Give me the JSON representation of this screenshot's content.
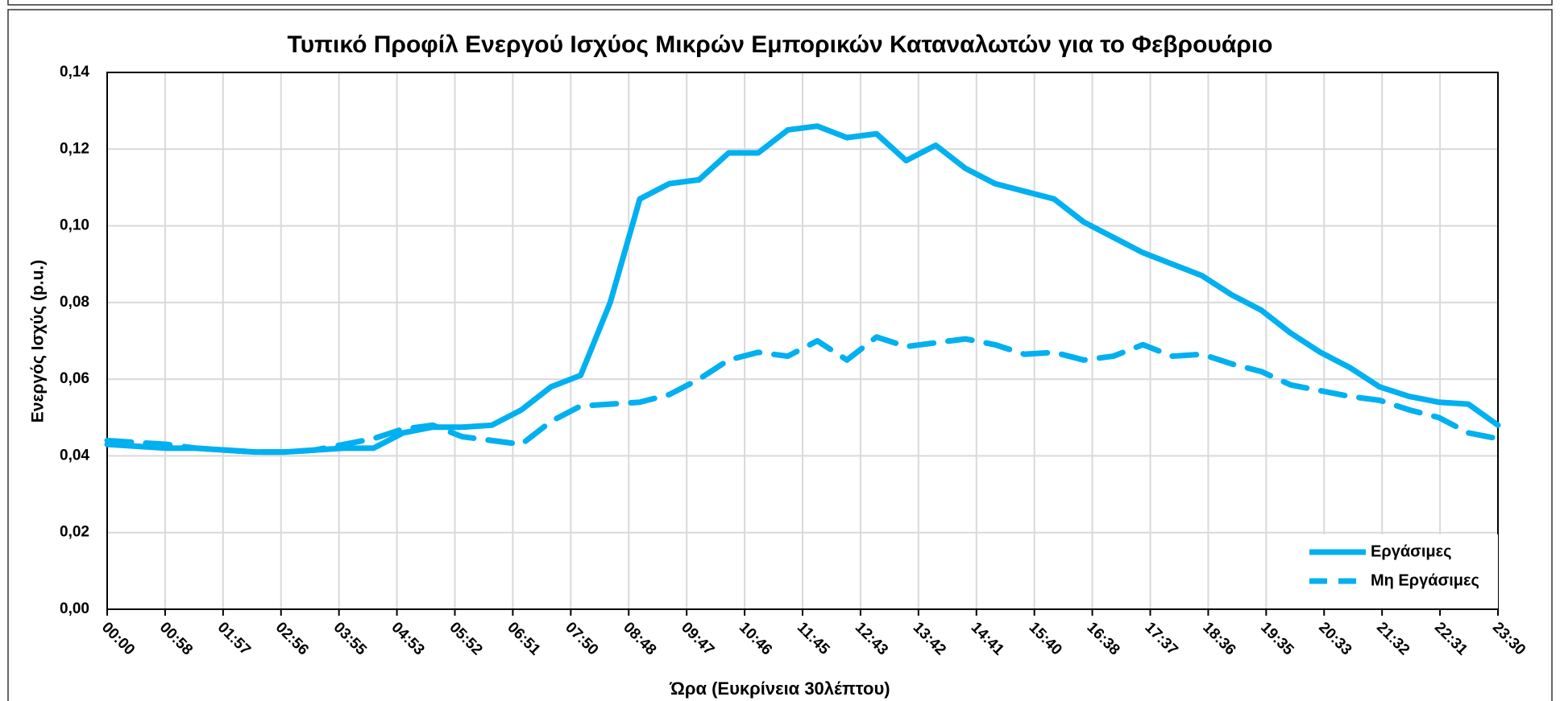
{
  "chart_data": {
    "type": "line",
    "title": "Τυπικό Προφίλ Ενεργού Ισχύος Μικρών Εμπορικών Καταναλωτών για το Φεβρουάριο",
    "x_label": "Ώρα (Ευκρίνεια 30λέπτου)",
    "y_label": "Ενεργός Ισχύς (p.u.)",
    "x": [
      0,
      30,
      60,
      90,
      120,
      150,
      180,
      210,
      240,
      270,
      300,
      330,
      360,
      390,
      420,
      450,
      480,
      510,
      540,
      570,
      600,
      630,
      660,
      690,
      720,
      750,
      780,
      810,
      840,
      870,
      900,
      930,
      960,
      990,
      1020,
      1050,
      1080,
      1110,
      1140,
      1170,
      1200,
      1230,
      1260,
      1290,
      1320,
      1350,
      1380,
      1410
    ],
    "xlim": [
      0,
      1410
    ],
    "xticks": [
      {
        "value": 0,
        "label": "00:00"
      },
      {
        "value": 58.75,
        "label": "00:58"
      },
      {
        "value": 117.5,
        "label": "01:57"
      },
      {
        "value": 176.25,
        "label": "02:56"
      },
      {
        "value": 235,
        "label": "03:55"
      },
      {
        "value": 293.75,
        "label": "04:53"
      },
      {
        "value": 352.5,
        "label": "05:52"
      },
      {
        "value": 411.25,
        "label": "06:51"
      },
      {
        "value": 470,
        "label": "07:50"
      },
      {
        "value": 528.75,
        "label": "08:48"
      },
      {
        "value": 587.5,
        "label": "09:47"
      },
      {
        "value": 646.25,
        "label": "10:46"
      },
      {
        "value": 705,
        "label": "11:45"
      },
      {
        "value": 763.75,
        "label": "12:43"
      },
      {
        "value": 822.5,
        "label": "13:42"
      },
      {
        "value": 881.25,
        "label": "14:41"
      },
      {
        "value": 940,
        "label": "15:40"
      },
      {
        "value": 998.75,
        "label": "16:38"
      },
      {
        "value": 1057.5,
        "label": "17:37"
      },
      {
        "value": 1116.25,
        "label": "18:36"
      },
      {
        "value": 1175,
        "label": "19:35"
      },
      {
        "value": 1233.75,
        "label": "20:33"
      },
      {
        "value": 1292.5,
        "label": "21:32"
      },
      {
        "value": 1351.25,
        "label": "22:31"
      },
      {
        "value": 1410,
        "label": "23:30"
      }
    ],
    "ylim": [
      0,
      0.14
    ],
    "yticks": [
      {
        "value": 0,
        "label": "0,00"
      },
      {
        "value": 0.02,
        "label": "0,02"
      },
      {
        "value": 0.04,
        "label": "0,04"
      },
      {
        "value": 0.06,
        "label": "0,06"
      },
      {
        "value": 0.08,
        "label": "0,08"
      },
      {
        "value": 0.1,
        "label": "0,10"
      },
      {
        "value": 0.12,
        "label": "0,12"
      },
      {
        "value": 0.14,
        "label": "0,14"
      }
    ],
    "grid": true,
    "legend": "lower right",
    "series": [
      {
        "name": "Εργάσιμες",
        "color": "#00b0f0",
        "dash": "solid",
        "values": [
          0.043,
          0.0425,
          0.042,
          0.042,
          0.0415,
          0.041,
          0.041,
          0.0415,
          0.042,
          0.042,
          0.046,
          0.0475,
          0.0475,
          0.048,
          0.052,
          0.058,
          0.061,
          0.08,
          0.107,
          0.111,
          0.112,
          0.119,
          0.119,
          0.125,
          0.126,
          0.123,
          0.124,
          0.117,
          0.121,
          0.115,
          0.111,
          0.109,
          0.107,
          0.101,
          0.097,
          0.093,
          0.09,
          0.087,
          0.082,
          0.078,
          0.072,
          0.067,
          0.063,
          0.058,
          0.0555,
          0.054,
          0.0535,
          0.048
        ]
      },
      {
        "name": "Μη Εργάσιμες",
        "color": "#00b0f0",
        "dash": "dashed",
        "values": [
          0.044,
          0.0435,
          0.043,
          0.042,
          0.0415,
          0.041,
          0.041,
          0.0415,
          0.043,
          0.0445,
          0.047,
          0.048,
          0.045,
          0.044,
          0.043,
          0.049,
          0.053,
          0.0535,
          0.054,
          0.056,
          0.06,
          0.065,
          0.067,
          0.066,
          0.07,
          0.065,
          0.071,
          0.0685,
          0.0695,
          0.0705,
          0.069,
          0.0665,
          0.067,
          0.065,
          0.066,
          0.069,
          0.066,
          0.0665,
          0.064,
          0.062,
          0.0585,
          0.057,
          0.0555,
          0.0545,
          0.052,
          0.05,
          0.046,
          0.0445
        ]
      }
    ]
  }
}
